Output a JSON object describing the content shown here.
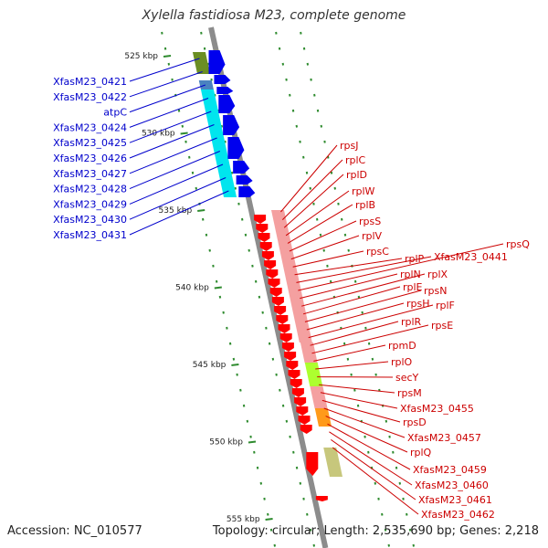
{
  "title": "Xylella fastidiosa M23, complete genome",
  "footer": {
    "accession": "Accession: NC_010577",
    "summary": "Topology: circular; Length: 2,535,690 bp; Genes: 2,218"
  },
  "colors": {
    "backbone": "#8c8c8c",
    "tick": "#2e8b2e",
    "left_label": "#0000cc",
    "right_label": "#cc0000",
    "left_gene": "#0000ee",
    "right_gene": "#ff0000"
  },
  "scale_labels": [
    {
      "text": "525 kbp",
      "kbp": 525
    },
    {
      "text": "530 kbp",
      "kbp": 530
    },
    {
      "text": "535 kbp",
      "kbp": 535
    },
    {
      "text": "540 kbp",
      "kbp": 540
    },
    {
      "text": "545 kbp",
      "kbp": 545
    },
    {
      "text": "550 kbp",
      "kbp": 550
    },
    {
      "text": "555 kbp",
      "kbp": 555
    }
  ],
  "left_genes": [
    "XfasM23_0421",
    "XfasM23_0422",
    "atpC",
    "XfasM23_0424",
    "XfasM23_0425",
    "XfasM23_0426",
    "XfasM23_0427",
    "XfasM23_0428",
    "XfasM23_0429",
    "XfasM23_0430",
    "XfasM23_0431"
  ],
  "right_genes": [
    "rpsJ",
    "rplC",
    "rplD",
    "rplW",
    "rplB",
    "rpsS",
    "rplV",
    "rpsC",
    "rplP",
    "XfasM23_0441",
    "rpsQ",
    "rplN",
    "rplX",
    "rplE",
    "rpsN",
    "rpsH",
    "rplF",
    "rplR",
    "rpsE",
    "rpmD",
    "rplO",
    "secY",
    "rpsM",
    "XfasM23_0455",
    "rpsD",
    "XfasM23_0457",
    "rplQ",
    "XfasM23_0459",
    "XfasM23_0460",
    "XfasM23_0461",
    "XfasM23_0462"
  ]
}
